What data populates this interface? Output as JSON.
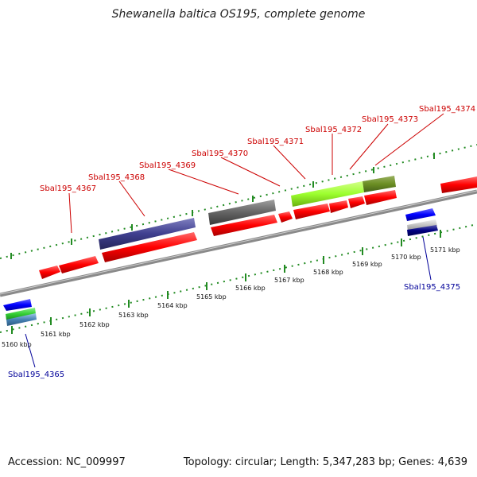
{
  "header": {
    "title": "Shewanella baltica OS195, complete genome"
  },
  "footer": {
    "accession": "Accession: NC_009997",
    "summary": "Topology: circular; Length: 5,347,283 bp; Genes: 4,639"
  },
  "colors": {
    "forward_gene": "#ff0000",
    "reverse_gene": "#0000ff",
    "forward_label": "#cc0000",
    "reverse_label": "#000099",
    "tick": "#228b22",
    "backbone": "#8a8a8a"
  },
  "scale": {
    "labels": [
      "5160 kbp",
      "5161 kbp",
      "5162 kbp",
      "5163 kbp",
      "5164 kbp",
      "5165 kbp",
      "5166 kbp",
      "5167 kbp",
      "5168 kbp",
      "5169 kbp",
      "5170 kbp",
      "5171 kbp"
    ]
  },
  "labels": {
    "forward": [
      "Sbal195_4367",
      "Sbal195_4368",
      "Sbal195_4369",
      "Sbal195_4370",
      "Sbal195_4371",
      "Sbal195_4372",
      "Sbal195_4373",
      "Sbal195_4374"
    ],
    "reverse": [
      "Sbal195_4365",
      "Sbal195_4375"
    ]
  }
}
